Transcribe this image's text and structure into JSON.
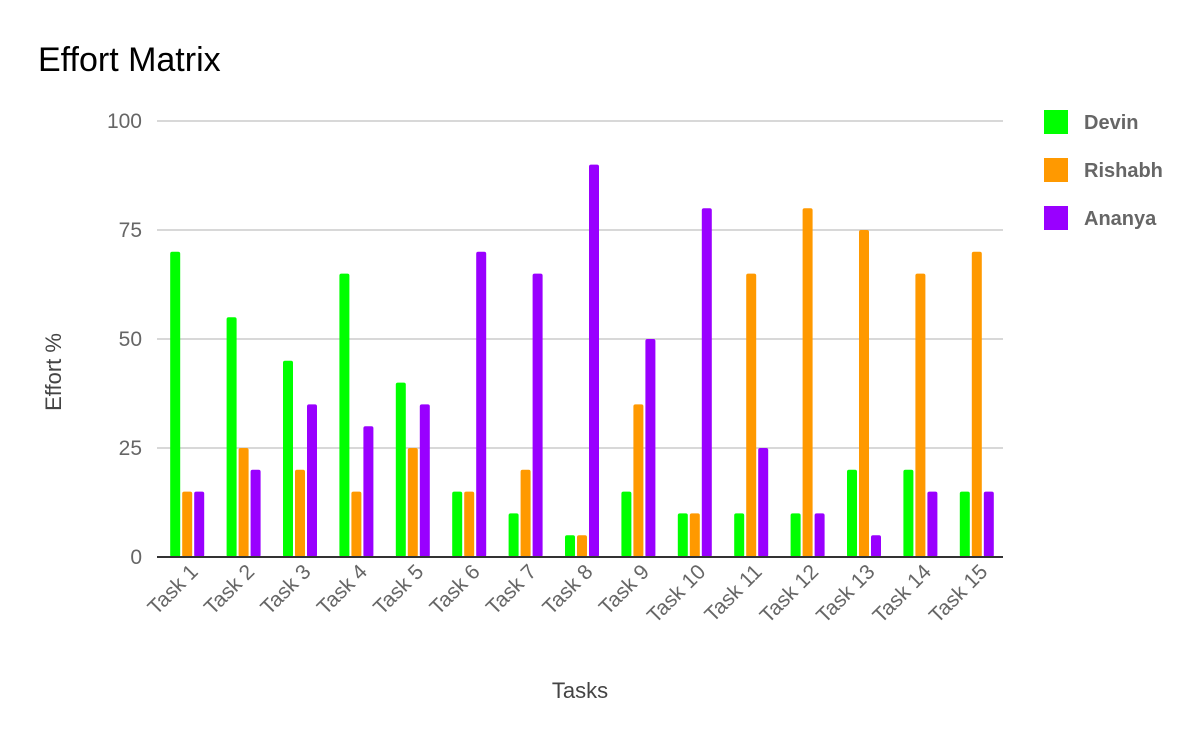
{
  "chart_data": {
    "type": "bar",
    "title": "Effort Matrix",
    "xlabel": "Tasks",
    "ylabel": "Effort %",
    "ylim": [
      0,
      100
    ],
    "yticks": [
      0,
      25,
      50,
      75,
      100
    ],
    "grid": true,
    "legend_position": "right",
    "categories": [
      "Task 1",
      "Task 2",
      "Task 3",
      "Task 4",
      "Task 5",
      "Task 6",
      "Task 7",
      "Task 8",
      "Task 9",
      "Task 10",
      "Task 11",
      "Task 12",
      "Task 13",
      "Task 14",
      "Task 15"
    ],
    "series": [
      {
        "name": "Devin",
        "color": "#00ff00",
        "values": [
          70,
          55,
          45,
          65,
          40,
          15,
          10,
          5,
          15,
          10,
          10,
          10,
          20,
          20,
          15
        ]
      },
      {
        "name": "Rishabh",
        "color": "#ff9900",
        "values": [
          15,
          25,
          20,
          15,
          25,
          15,
          20,
          5,
          35,
          10,
          65,
          80,
          75,
          65,
          70
        ]
      },
      {
        "name": "Ananya",
        "color": "#9900ff",
        "values": [
          15,
          20,
          35,
          30,
          35,
          70,
          65,
          90,
          50,
          80,
          25,
          10,
          5,
          15,
          15
        ]
      }
    ]
  }
}
